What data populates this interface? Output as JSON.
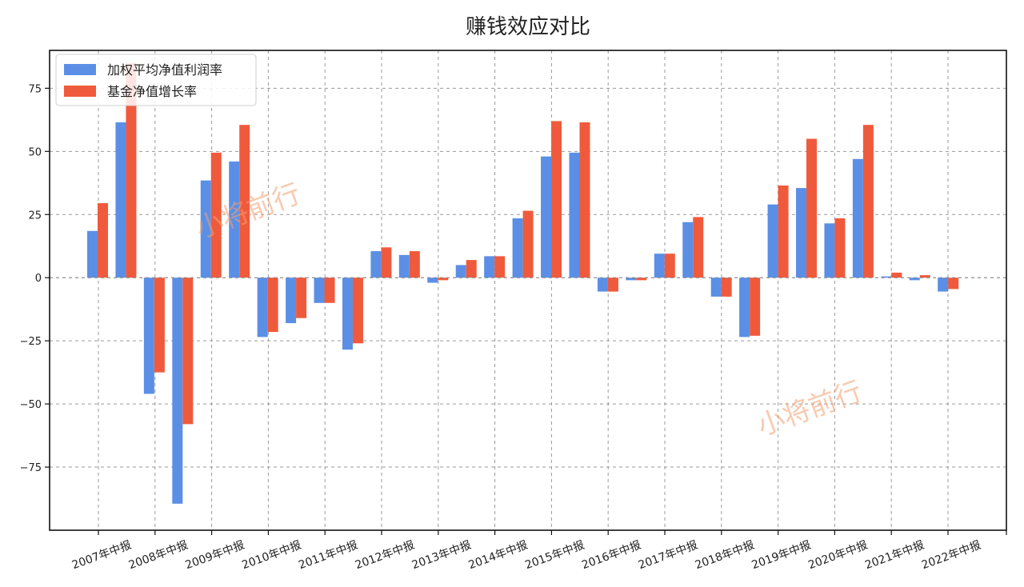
{
  "chart_data": {
    "type": "bar",
    "title": "赚钱效应对比",
    "xlabel": "",
    "ylabel": "",
    "ylim": [
      -100,
      90
    ],
    "yticks": [
      75,
      50,
      25,
      0,
      -25,
      -50,
      -75
    ],
    "ytick_labels": [
      "75",
      "50",
      "25",
      "0",
      "−25",
      "−50",
      "−75"
    ],
    "grid": true,
    "legend_position": "top-left",
    "tick_categories": [
      "2007年中报",
      "2008年中报",
      "2009年中报",
      "2010年中报",
      "2011年中报",
      "2012年中报",
      "2013年中报",
      "2014年中报",
      "2015年中报",
      "2016年中报",
      "2017年中报",
      "2018年中报",
      "2019年中报",
      "2020年中报",
      "2021年中报",
      "2022年中报"
    ],
    "series": [
      {
        "name": "加权平均净值利润率",
        "color": "#5b8fe6",
        "values": [
          18.5,
          61.5,
          -46,
          -89.5,
          38.5,
          46,
          -23.5,
          -18,
          -10,
          -28.5,
          10.5,
          9,
          -2,
          5,
          8.5,
          23.5,
          48,
          49.5,
          -5.5,
          -1,
          9.5,
          22,
          -7.5,
          -23.5,
          29,
          35.5,
          21.5,
          47,
          0.5,
          -1,
          -5.5
        ]
      },
      {
        "name": "基金净值增长率",
        "color": "#f05a3c",
        "values": [
          29.5,
          85,
          -37.5,
          -58,
          49.5,
          60.5,
          -21.5,
          -16,
          -10,
          -26,
          12,
          10.5,
          -1,
          7,
          8.5,
          26.5,
          62,
          61.5,
          -5.5,
          -1,
          9.5,
          24,
          -7.5,
          -23,
          36.5,
          55,
          23.5,
          60.5,
          2,
          1,
          -4.5
        ]
      }
    ],
    "watermarks": [
      "小将前行",
      "小将前行"
    ]
  }
}
